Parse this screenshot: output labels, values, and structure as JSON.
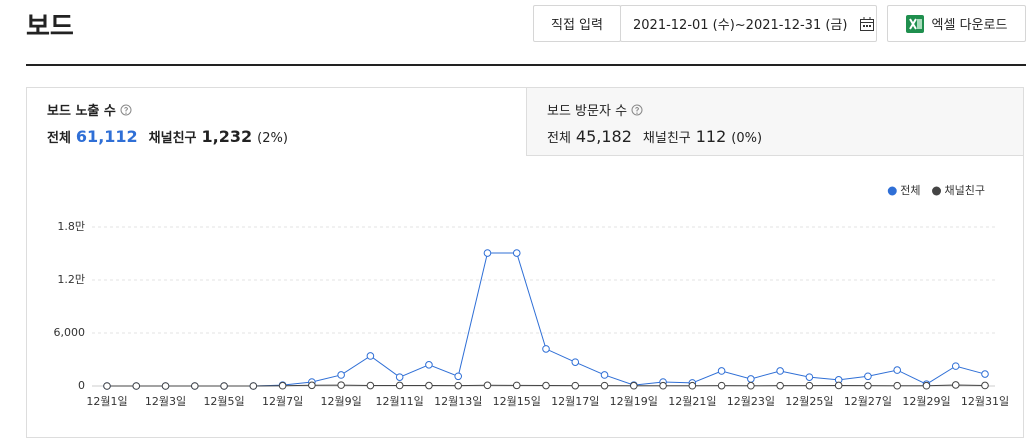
{
  "header": {
    "title": "보드",
    "date_mode": "직접 입력",
    "date_range": "2021-12-01 (수)~2021-12-31 (금)",
    "download": "엑셀 다운로드"
  },
  "tabs": [
    {
      "title": "보드 노출 수",
      "total_label": "전체",
      "total": "61,112",
      "friends_label": "채널친구",
      "friends": "1,232",
      "share": "(2%)"
    },
    {
      "title": "보드 방문자 수",
      "total_label": "전체",
      "total": "45,182",
      "friends_label": "채널친구",
      "friends": "112",
      "share": "(0%)"
    }
  ],
  "chart_data": {
    "type": "line",
    "categories": [
      "12월1일",
      null,
      "12월3일",
      null,
      "12월5일",
      null,
      "12월7일",
      null,
      "12월9일",
      null,
      "12월11일",
      null,
      "12월13일",
      null,
      "12월15일",
      null,
      "12월17일",
      null,
      "12월19일",
      null,
      "12월21일",
      null,
      "12월23일",
      null,
      "12월25일",
      null,
      "12월27일",
      null,
      "12월29일",
      null,
      "12월31일"
    ],
    "series": [
      {
        "name": "전체",
        "color": "#2f6fd6",
        "values": [
          0,
          0,
          0,
          0,
          0,
          0,
          100,
          450,
          1250,
          3400,
          1000,
          2400,
          1100,
          15050,
          15050,
          4200,
          2700,
          1250,
          100,
          450,
          350,
          1700,
          800,
          1700,
          1000,
          700,
          1100,
          1800,
          200,
          2250,
          1350
        ]
      },
      {
        "name": "채널친구",
        "color": "#444444",
        "values": [
          0,
          0,
          0,
          0,
          0,
          0,
          30,
          80,
          100,
          50,
          60,
          50,
          40,
          80,
          70,
          50,
          40,
          40,
          30,
          30,
          30,
          40,
          30,
          40,
          40,
          60,
          40,
          30,
          30,
          120,
          60
        ]
      }
    ],
    "ylim": [
      0,
      18000
    ],
    "yticks": [
      0,
      {
        "value": 6000,
        "label": "6,000"
      },
      {
        "value": 12000,
        "label": "1.2만"
      },
      {
        "value": 18000,
        "label": "1.8만"
      }
    ],
    "grid": true,
    "legend": "top-right"
  }
}
